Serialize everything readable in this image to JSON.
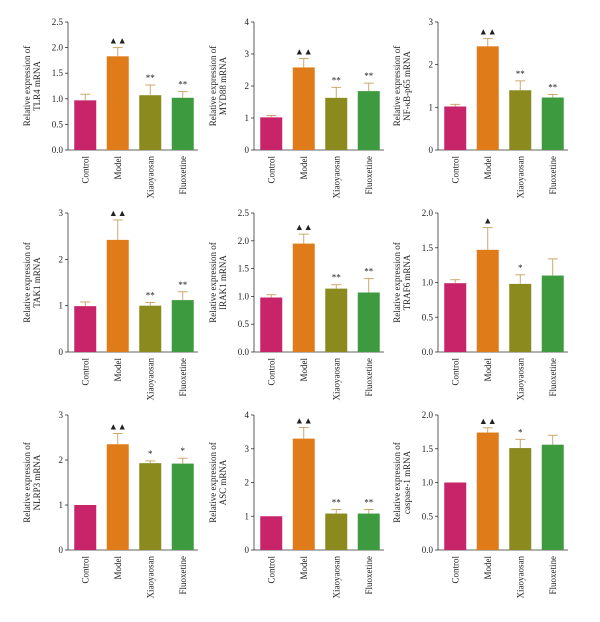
{
  "figure": {
    "categories": [
      "Control",
      "Model",
      "Xiaoyaosan",
      "Fluoxetine"
    ],
    "series_colors": [
      "#c8246a",
      "#e07b1a",
      "#8a8a1e",
      "#3e9a3e"
    ],
    "error_color": "#c8a060"
  },
  "chart_data": [
    {
      "type": "bar",
      "ylabel_lines": [
        "Relative expression of",
        "TLR4 mRNA"
      ],
      "ylim": [
        0,
        2.5
      ],
      "yticks": [
        "0.0",
        "0.5",
        "1.0",
        "1.5",
        "2.0",
        "2.5"
      ],
      "values": [
        0.97,
        1.83,
        1.07,
        1.02
      ],
      "errors": [
        0.12,
        0.17,
        0.2,
        0.12
      ],
      "markers": [
        "",
        "▲▲",
        "**",
        "**"
      ]
    },
    {
      "type": "bar",
      "ylabel_lines": [
        "Relative expression of",
        "MYD88 mRNA"
      ],
      "ylim": [
        0,
        4
      ],
      "yticks": [
        "0",
        "1",
        "2",
        "3",
        "4"
      ],
      "values": [
        1.02,
        2.58,
        1.63,
        1.84
      ],
      "errors": [
        0.06,
        0.28,
        0.33,
        0.25
      ],
      "markers": [
        "",
        "▲▲",
        "**",
        "**"
      ]
    },
    {
      "type": "bar",
      "ylabel_lines": [
        "Relative expression of",
        "NF-κB-p65 mRNA"
      ],
      "ylim": [
        0,
        3
      ],
      "yticks": [
        "0",
        "1",
        "2",
        "3"
      ],
      "values": [
        1.02,
        2.43,
        1.4,
        1.23
      ],
      "errors": [
        0.05,
        0.18,
        0.22,
        0.07
      ],
      "markers": [
        "",
        "▲▲",
        "**",
        "**"
      ]
    },
    {
      "type": "bar",
      "ylabel_lines": [
        "Relative expression of",
        "TAK1 mRNA"
      ],
      "ylim": [
        0,
        3
      ],
      "yticks": [
        "0",
        "1",
        "2",
        "3"
      ],
      "values": [
        0.99,
        2.42,
        1.0,
        1.12
      ],
      "errors": [
        0.09,
        0.43,
        0.07,
        0.18
      ],
      "markers": [
        "",
        "▲▲",
        "**",
        "**"
      ]
    },
    {
      "type": "bar",
      "ylabel_lines": [
        "Relative expression of",
        "IRAK1 mRNA"
      ],
      "ylim": [
        0,
        2.5
      ],
      "yticks": [
        "0.0",
        "0.5",
        "1.0",
        "1.5",
        "2.0",
        "2.5"
      ],
      "values": [
        0.98,
        1.95,
        1.14,
        1.07
      ],
      "errors": [
        0.05,
        0.17,
        0.07,
        0.25
      ],
      "markers": [
        "",
        "▲▲",
        "**",
        "**"
      ]
    },
    {
      "type": "bar",
      "ylabel_lines": [
        "Relative expression of",
        "TRAF6 mRNA"
      ],
      "ylim": [
        0,
        2.0
      ],
      "yticks": [
        "0.0",
        "0.5",
        "1.0",
        "1.5",
        "2.0"
      ],
      "values": [
        0.99,
        1.47,
        0.98,
        1.1
      ],
      "errors": [
        0.05,
        0.32,
        0.13,
        0.24
      ],
      "markers": [
        "",
        "▲",
        "*",
        ""
      ]
    },
    {
      "type": "bar",
      "ylabel_lines": [
        "Relative expression of",
        "NLRP3 mRNA"
      ],
      "ylim": [
        0,
        3
      ],
      "yticks": [
        "0",
        "1",
        "2",
        "3"
      ],
      "values": [
        1.0,
        2.35,
        1.93,
        1.92
      ],
      "errors": [
        0.0,
        0.24,
        0.05,
        0.12
      ],
      "markers": [
        "",
        "▲▲",
        "*",
        "*"
      ]
    },
    {
      "type": "bar",
      "ylabel_lines": [
        "Relative expression of",
        "ASC mRNA"
      ],
      "ylim": [
        0,
        4
      ],
      "yticks": [
        "0",
        "1",
        "2",
        "3",
        "4"
      ],
      "values": [
        1.0,
        3.3,
        1.08,
        1.08
      ],
      "errors": [
        0.0,
        0.33,
        0.12,
        0.12
      ],
      "markers": [
        "",
        "▲▲",
        "**",
        "**"
      ]
    },
    {
      "type": "bar",
      "ylabel_lines": [
        "Relative expression of",
        "caspase-1 mRNA"
      ],
      "ylim": [
        0,
        2.0
      ],
      "yticks": [
        "0.0",
        "0.5",
        "1.0",
        "1.5",
        "2.0"
      ],
      "values": [
        1.0,
        1.74,
        1.51,
        1.56
      ],
      "errors": [
        0.0,
        0.07,
        0.13,
        0.14
      ],
      "markers": [
        "",
        "▲▲",
        "*",
        ""
      ]
    }
  ]
}
